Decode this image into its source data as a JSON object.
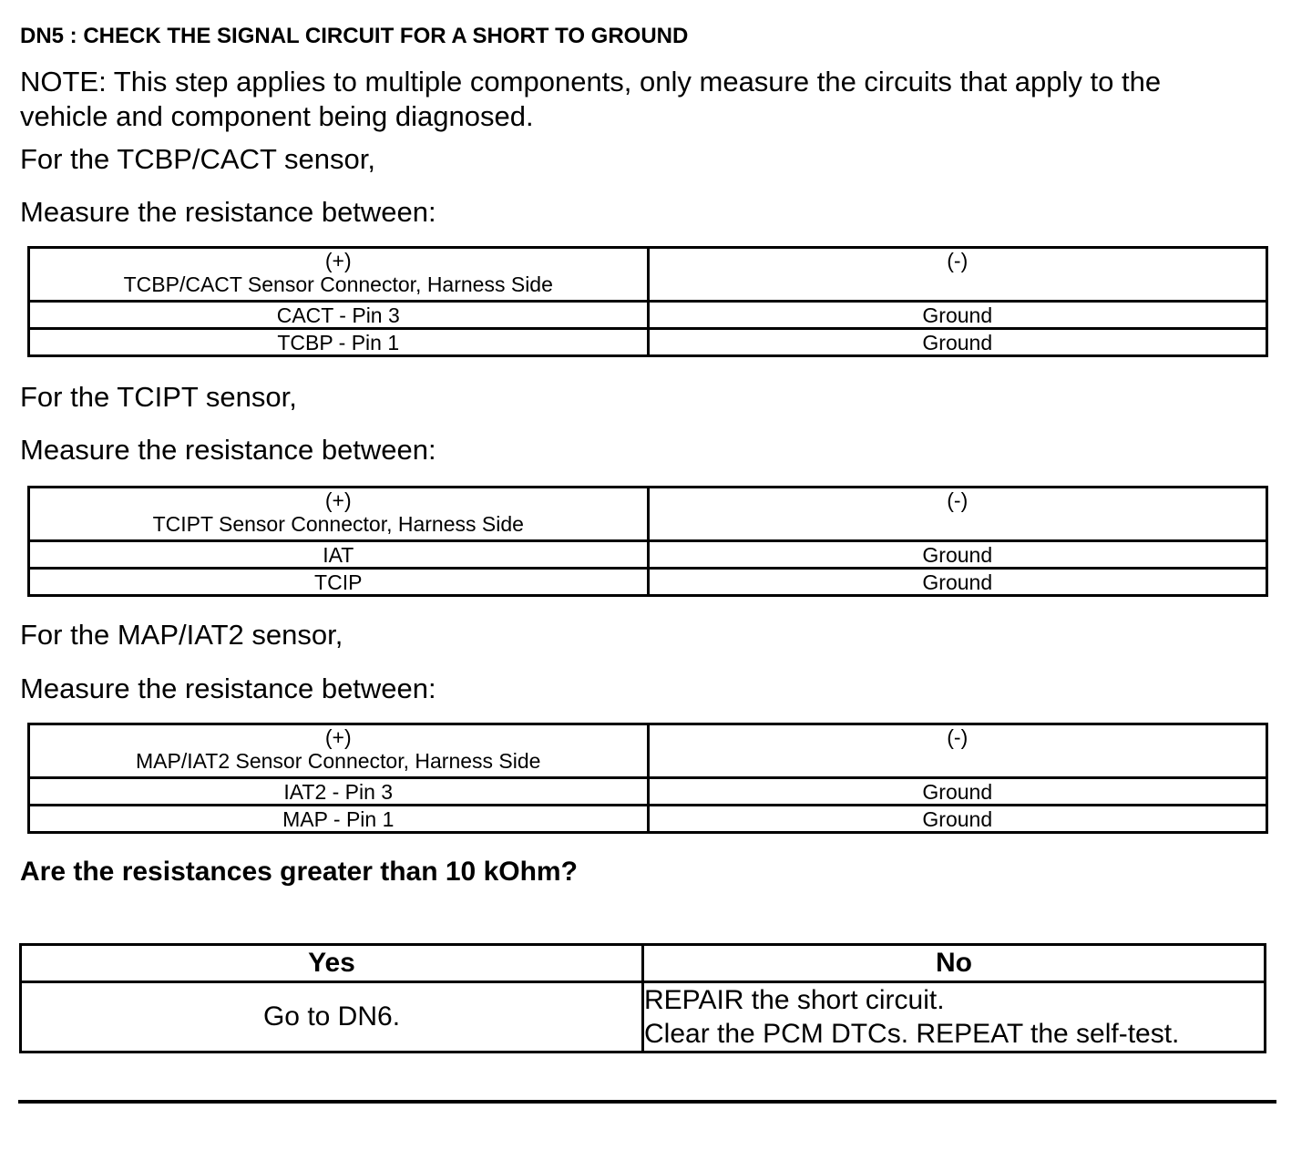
{
  "title": "DN5 : CHECK THE SIGNAL CIRCUIT FOR A SHORT TO GROUND",
  "note_line1": "NOTE: This step applies to multiple components, only measure the circuits that apply to the",
  "note_line2": "vehicle and component being diagnosed.",
  "sections": [
    {
      "intro": "For the TCBP/CACT sensor,",
      "measure": "Measure the resistance between:",
      "header_pos_sign": "(+)",
      "header_pos_label": "TCBP/CACT Sensor Connector, Harness Side",
      "header_neg_sign": "(-)",
      "rows": [
        [
          "CACT - Pin 3",
          "Ground"
        ],
        [
          "TCBP - Pin 1",
          "Ground"
        ]
      ]
    },
    {
      "intro": "For the TCIPT sensor,",
      "measure": "Measure the resistance between:",
      "header_pos_sign": "(+)",
      "header_pos_label": "TCIPT Sensor Connector, Harness Side",
      "header_neg_sign": "(-)",
      "rows": [
        [
          "IAT",
          "Ground"
        ],
        [
          "TCIP",
          "Ground"
        ]
      ]
    },
    {
      "intro": "For the MAP/IAT2 sensor,",
      "measure": "Measure the resistance between:",
      "header_pos_sign": "(+)",
      "header_pos_label": "MAP/IAT2 Sensor Connector, Harness Side",
      "header_neg_sign": "(-)",
      "rows": [
        [
          "IAT2 - Pin 3",
          "Ground"
        ],
        [
          "MAP - Pin 1",
          "Ground"
        ]
      ]
    }
  ],
  "question": "Are the resistances greater than 10 kOhm?",
  "decision": {
    "yes_header": "Yes",
    "no_header": "No",
    "yes_action": "Go to DN6.",
    "no_action_line1": "REPAIR the short circuit.",
    "no_action_line2": "Clear the PCM DTCs. REPEAT the self-test."
  }
}
